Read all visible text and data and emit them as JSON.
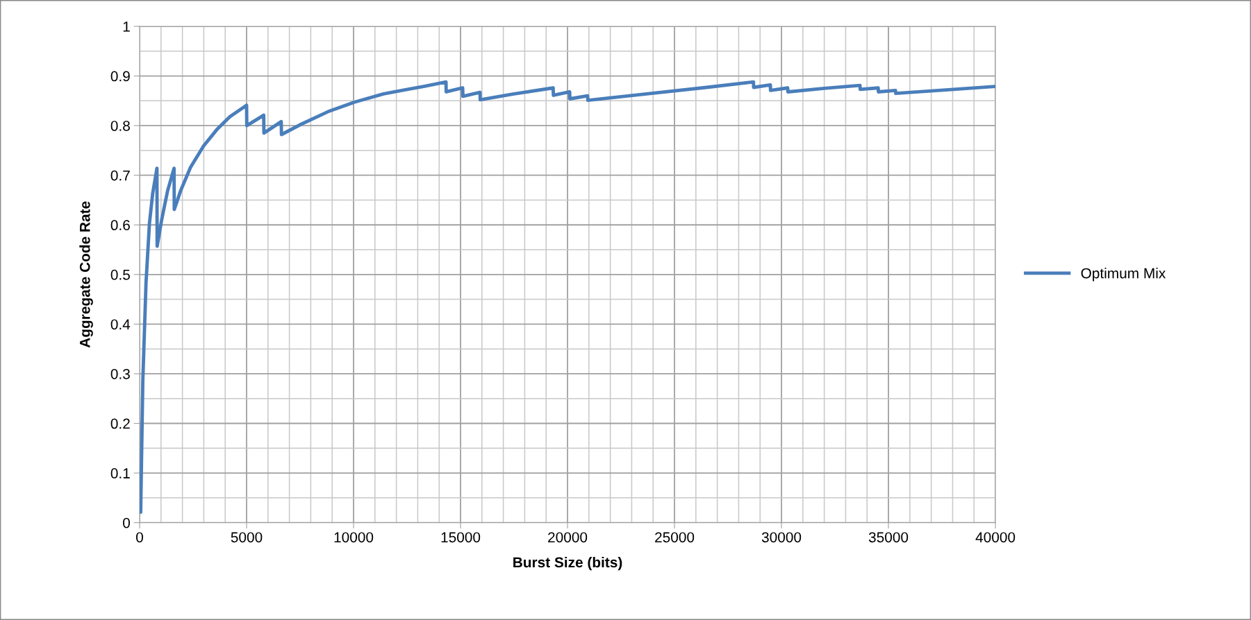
{
  "chart_data": {
    "type": "line",
    "xlabel": "Burst Size (bits)",
    "ylabel": "Aggregate Code Rate",
    "xlim": [
      0,
      40000
    ],
    "xticks": [
      0,
      5000,
      10000,
      15000,
      20000,
      25000,
      30000,
      35000,
      40000
    ],
    "ylim": [
      0,
      1
    ],
    "yticks": [
      0,
      0.1,
      0.2,
      0.3,
      0.4,
      0.5,
      0.6,
      0.7,
      0.8,
      0.9,
      1
    ],
    "grid": true,
    "legend": "right",
    "marker": "none",
    "line_style": "solid",
    "series": [
      {
        "name": "Optimum Mix",
        "color": "#4a7ebb",
        "x": [
          50,
          150,
          300,
          460,
          610,
          810,
          820,
          1030,
          1310,
          1610,
          1620,
          1920,
          2380,
          2990,
          3610,
          4220,
          5000,
          5010,
          5800,
          5810,
          6620,
          6630,
          7560,
          8800,
          10020,
          11400,
          12520,
          13280,
          14320,
          14330,
          15100,
          15110,
          15910,
          15920,
          17500,
          19330,
          19340,
          20100,
          20110,
          20940,
          20950,
          23700,
          26500,
          28690,
          28700,
          29480,
          29490,
          30290,
          30300,
          32000,
          33670,
          33680,
          34520,
          34530,
          35330,
          35340,
          37700,
          40000
        ],
        "values": [
          0.021,
          0.286,
          0.484,
          0.603,
          0.663,
          0.714,
          0.557,
          0.61,
          0.669,
          0.714,
          0.631,
          0.669,
          0.716,
          0.759,
          0.792,
          0.818,
          0.841,
          0.8,
          0.821,
          0.785,
          0.808,
          0.782,
          0.803,
          0.828,
          0.847,
          0.864,
          0.873,
          0.879,
          0.888,
          0.868,
          0.876,
          0.859,
          0.867,
          0.852,
          0.864,
          0.876,
          0.861,
          0.868,
          0.854,
          0.86,
          0.851,
          0.864,
          0.877,
          0.888,
          0.877,
          0.882,
          0.871,
          0.876,
          0.868,
          0.875,
          0.881,
          0.873,
          0.876,
          0.868,
          0.871,
          0.865,
          0.872,
          0.879
        ]
      }
    ]
  }
}
